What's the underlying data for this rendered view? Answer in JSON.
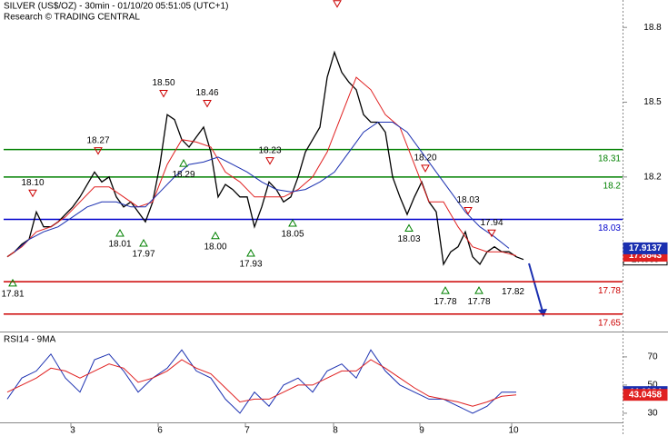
{
  "chart_data": [
    {
      "type": "line",
      "title": "SILVER (US$/OZ) - 30min - 01/10/20 05:51:05 (UTC+1)",
      "subtitle": "Research © TRADING CENTRAL",
      "xlim": [
        0,
        342.5
      ],
      "ylim": [
        17.58,
        18.91
      ],
      "yticks": [
        18.8,
        18.5,
        18.2
      ],
      "series": [
        {
          "color": "#000000",
          "x": [
            4,
            8,
            12,
            16,
            20,
            24,
            28,
            32,
            36,
            40,
            44,
            48,
            52,
            56,
            60,
            64,
            68,
            72,
            76,
            80,
            84,
            88,
            92,
            96,
            100,
            104,
            108,
            112,
            116,
            120,
            124,
            128,
            132,
            136,
            140,
            144,
            148,
            152,
            156,
            160,
            164,
            168,
            172,
            176,
            180,
            184,
            188,
            192,
            196,
            200,
            204,
            208,
            212,
            216,
            220,
            224,
            228,
            232,
            236,
            240,
            244,
            248,
            252,
            256,
            260,
            264,
            268,
            272,
            276,
            280,
            284,
            288
          ],
          "values": [
            17.88,
            17.9,
            17.93,
            17.95,
            18.06,
            18.0,
            18.0,
            18.02,
            18.05,
            18.08,
            18.12,
            18.17,
            18.22,
            18.18,
            18.2,
            18.12,
            18.08,
            18.1,
            18.06,
            18.02,
            18.1,
            18.25,
            18.45,
            18.43,
            18.35,
            18.32,
            18.36,
            18.4,
            18.3,
            18.12,
            18.17,
            18.15,
            18.12,
            18.12,
            18.0,
            18.08,
            18.18,
            18.15,
            18.1,
            18.12,
            18.2,
            18.3,
            18.35,
            18.4,
            18.6,
            18.7,
            18.62,
            18.58,
            18.55,
            18.45,
            18.42,
            18.42,
            18.38,
            18.2,
            18.12,
            18.05,
            18.12,
            18.18,
            18.1,
            18.06,
            17.85,
            17.9,
            17.92,
            17.98,
            17.88,
            17.85,
            17.9,
            17.92,
            17.9,
            17.9,
            17.88,
            17.869
          ]
        },
        {
          "color": "#e02020",
          "x": [
            4,
            12,
            20,
            28,
            36,
            44,
            52,
            60,
            68,
            76,
            84,
            92,
            100,
            108,
            116,
            124,
            132,
            140,
            148,
            156,
            164,
            172,
            180,
            188,
            196,
            204,
            212,
            220,
            228,
            236,
            244,
            252,
            260,
            268,
            276,
            284
          ],
          "values": [
            17.88,
            17.92,
            17.98,
            18.0,
            18.04,
            18.1,
            18.16,
            18.16,
            18.12,
            18.08,
            18.1,
            18.25,
            18.35,
            18.34,
            18.32,
            18.22,
            18.18,
            18.12,
            18.12,
            18.12,
            18.15,
            18.2,
            18.3,
            18.45,
            18.6,
            18.55,
            18.45,
            18.4,
            18.25,
            18.1,
            18.1,
            18.0,
            17.92,
            17.9,
            17.9,
            17.8843
          ]
        },
        {
          "color": "#1a2fb0",
          "x": [
            8,
            16,
            24,
            32,
            40,
            48,
            56,
            64,
            72,
            80,
            88,
            96,
            104,
            112,
            120,
            128,
            136,
            144,
            152,
            160,
            168,
            176,
            184,
            192,
            200,
            208,
            216,
            224,
            232,
            240,
            248,
            256,
            264,
            272,
            280
          ],
          "values": [
            17.9,
            17.95,
            17.98,
            18.0,
            18.04,
            18.08,
            18.1,
            18.1,
            18.08,
            18.08,
            18.14,
            18.2,
            18.25,
            18.26,
            18.28,
            18.25,
            18.22,
            18.18,
            18.15,
            18.14,
            18.15,
            18.18,
            18.22,
            18.3,
            18.38,
            18.42,
            18.42,
            18.38,
            18.3,
            18.22,
            18.14,
            18.06,
            18.0,
            17.96,
            17.9137
          ]
        }
      ],
      "levels": [
        {
          "value": 18.31,
          "color": "#008000"
        },
        {
          "value": 18.2,
          "color": "#008000"
        },
        {
          "value": 18.03,
          "color": "#0000cc"
        },
        {
          "value": 17.78,
          "color": "#cc0000"
        },
        {
          "value": 17.65,
          "color": "#cc0000"
        }
      ],
      "highs": [
        {
          "x": 18,
          "value": 18.1,
          "label": "18.10"
        },
        {
          "x": 54,
          "value": 18.27
        },
        {
          "x": 90,
          "value": 18.5,
          "label": "18.50"
        },
        {
          "x": 114,
          "value": 18.46
        },
        {
          "x": 148.5,
          "value": 18.23
        },
        {
          "x": 185.5,
          "value": 18.86
        },
        {
          "x": 234,
          "value": 18.2,
          "label": "18.20"
        },
        {
          "x": 257.5,
          "value": 18.03
        },
        {
          "x": 270.5,
          "value": 17.94
        }
      ],
      "lows": [
        {
          "x": 7,
          "value": 17.81
        },
        {
          "x": 66,
          "value": 18.01
        },
        {
          "x": 79,
          "value": 17.97
        },
        {
          "x": 101,
          "value": 18.29
        },
        {
          "x": 118.5,
          "value": 18.0,
          "label": "18.00"
        },
        {
          "x": 138,
          "value": 17.93
        },
        {
          "x": 161,
          "value": 18.05
        },
        {
          "x": 225,
          "value": 18.03
        },
        {
          "x": 245,
          "value": 17.78
        },
        {
          "x": 263.5,
          "value": 17.78
        }
      ],
      "notes": [
        {
          "x": 288.5,
          "value": 17.82
        }
      ]
    },
    {
      "type": "line",
      "title": "RSI14 - 9MA",
      "xlim": [
        0,
        342.5
      ],
      "ylim": [
        23.5,
        88
      ],
      "yticks": [
        70,
        50,
        30
      ],
      "xticks": [
        {
          "value": 39,
          "label": "3"
        },
        {
          "value": 87,
          "label": "6"
        },
        {
          "value": 135,
          "label": "7"
        },
        {
          "value": 183.5,
          "label": "8"
        },
        {
          "value": 231,
          "label": "9"
        },
        {
          "value": 281.5,
          "label": "10"
        }
      ],
      "series": [
        {
          "color": "#1a2fb0",
          "x": [
            4,
            12,
            20,
            28,
            36,
            44,
            52,
            60,
            68,
            76,
            84,
            92,
            100,
            108,
            116,
            124,
            132,
            140,
            148,
            156,
            164,
            172,
            180,
            188,
            196,
            204,
            212,
            220,
            228,
            236,
            244,
            252,
            260,
            268,
            276,
            284
          ],
          "values": [
            40,
            55,
            60,
            72,
            55,
            45,
            68,
            72,
            60,
            45,
            55,
            62,
            75,
            60,
            55,
            40,
            30,
            45,
            35,
            50,
            55,
            45,
            60,
            65,
            55,
            75,
            60,
            50,
            45,
            40,
            40,
            35,
            30,
            35,
            45,
            44.9984
          ]
        },
        {
          "color": "#e02020",
          "x": [
            4,
            12,
            20,
            28,
            36,
            44,
            52,
            60,
            68,
            76,
            84,
            92,
            100,
            108,
            116,
            124,
            132,
            140,
            148,
            156,
            164,
            172,
            180,
            188,
            196,
            204,
            212,
            220,
            228,
            236,
            244,
            252,
            260,
            268,
            276,
            284
          ],
          "values": [
            45,
            50,
            55,
            62,
            60,
            55,
            60,
            65,
            62,
            52,
            55,
            60,
            68,
            62,
            58,
            48,
            38,
            40,
            40,
            45,
            50,
            50,
            55,
            60,
            60,
            68,
            62,
            55,
            48,
            42,
            40,
            38,
            35,
            38,
            42,
            43.0458
          ]
        }
      ]
    }
  ]
}
